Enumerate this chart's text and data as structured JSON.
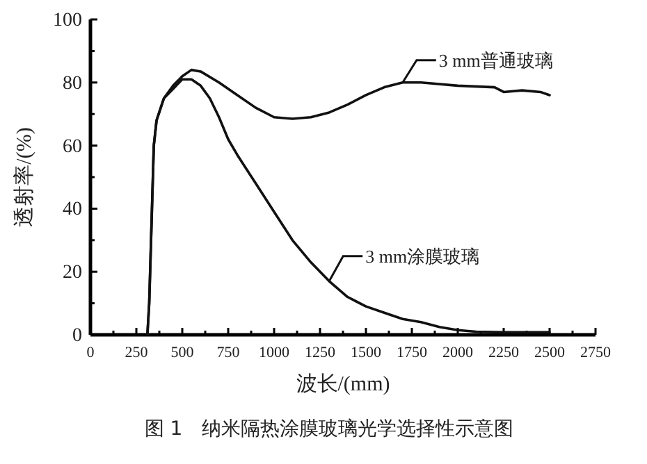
{
  "chart_data": {
    "type": "line",
    "xlabel": "波长/(mm)",
    "ylabel": "透射率/(%)",
    "annotations": [
      "图 1　纳米隔热涂膜玻璃光学选择性示意图"
    ],
    "xlim": [
      0,
      2750
    ],
    "xticks": [
      0,
      {
        "value": 125,
        "label": null
      },
      250,
      {
        "value": 375,
        "label": null
      },
      500,
      {
        "value": 625,
        "label": null
      },
      750,
      {
        "value": 875,
        "label": null
      },
      1000,
      {
        "value": 1125,
        "label": null
      },
      1250,
      {
        "value": 1375,
        "label": null
      },
      1500,
      {
        "value": 1625,
        "label": null
      },
      1750,
      {
        "value": 1875,
        "label": null
      },
      2000,
      {
        "value": 2125,
        "label": null
      },
      2250,
      {
        "value": 2375,
        "label": null
      },
      2500,
      {
        "value": 2625,
        "label": null
      },
      2750
    ],
    "ylim": [
      0,
      100
    ],
    "yticks": [
      0,
      {
        "value": 10,
        "label": null
      },
      20,
      {
        "value": 30,
        "label": null
      },
      40,
      {
        "value": 50,
        "label": null
      },
      60,
      {
        "value": 70,
        "label": null
      },
      80,
      {
        "value": 90,
        "label": null
      },
      100
    ],
    "grid": false,
    "legend": "right",
    "marker": "none",
    "line_style": "solid",
    "series": [
      {
        "name": "3 mm普通玻璃",
        "color": "#111111",
        "x": [
          310,
          320,
          335,
          345,
          360,
          400,
          450,
          500,
          550,
          600,
          700,
          800,
          900,
          1000,
          1100,
          1200,
          1300,
          1400,
          1500,
          1600,
          1700,
          1800,
          2000,
          2200,
          2250,
          2350,
          2450,
          2500
        ],
        "values": [
          0,
          10,
          40,
          60,
          68,
          75,
          79,
          82,
          84,
          83.5,
          80,
          76,
          72,
          69,
          68.5,
          69,
          70.5,
          73,
          76,
          78.5,
          80,
          80,
          79,
          78.5,
          77,
          77.5,
          77,
          76
        ]
      },
      {
        "name": "3 mm涂膜玻璃",
        "color": "#111111",
        "x": [
          310,
          320,
          335,
          345,
          360,
          400,
          450,
          500,
          550,
          600,
          650,
          700,
          750,
          800,
          900,
          1000,
          1100,
          1200,
          1300,
          1400,
          1500,
          1600,
          1700,
          1800,
          1900,
          2000,
          2100,
          2250,
          2500
        ],
        "values": [
          0,
          10,
          40,
          60,
          68,
          75,
          78,
          81,
          81,
          79,
          75,
          69,
          62,
          57,
          48,
          39,
          30,
          23,
          17,
          12,
          9,
          7,
          5,
          4,
          2.5,
          1.5,
          1,
          0.8,
          0.8
        ]
      }
    ]
  }
}
